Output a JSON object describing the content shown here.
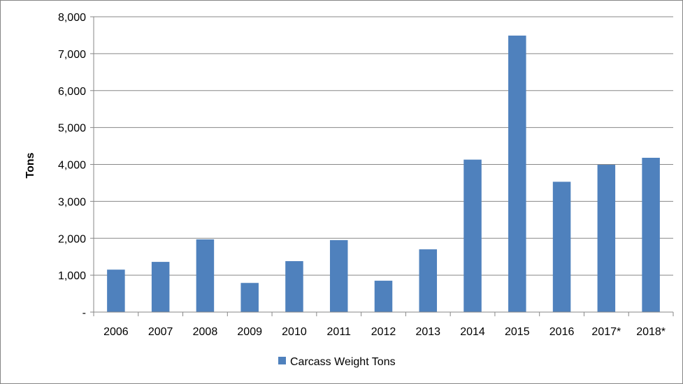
{
  "chart_data": {
    "type": "bar",
    "title": "",
    "xlabel": "",
    "ylabel": "Tons",
    "ylim": [
      0,
      8000
    ],
    "y_ticks": [
      0,
      1000,
      2000,
      3000,
      4000,
      5000,
      6000,
      7000,
      8000
    ],
    "y_tick_labels": [
      "-",
      "1,000",
      "2,000",
      "3,000",
      "4,000",
      "5,000",
      "6,000",
      "7,000",
      "8,000"
    ],
    "categories": [
      "2006",
      "2007",
      "2008",
      "2009",
      "2010",
      "2011",
      "2012",
      "2013",
      "2014",
      "2015",
      "2016",
      "2017*",
      "2018*"
    ],
    "series": [
      {
        "name": "Carcass Weight Tons",
        "color": "#4f81bd",
        "values": [
          1150,
          1360,
          1970,
          790,
          1380,
          1950,
          850,
          1700,
          4130,
          7490,
          3530,
          3990,
          4180
        ]
      }
    ],
    "grid": true,
    "legend_position": "bottom"
  }
}
